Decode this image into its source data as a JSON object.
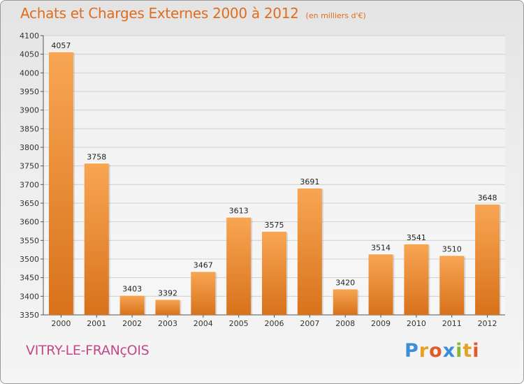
{
  "header": {
    "title": "Achats et Charges Externes 2000 à 2012",
    "unit": "(en milliers d'€)"
  },
  "location": "VITRY-LE-FRANçOIS",
  "brand": {
    "logo_text": "Proxiti"
  },
  "colors": {
    "title": "#e06d1f",
    "bar_light": "#f6a24f",
    "bar_dark": "#d9731c",
    "location": "#c04a88"
  },
  "chart_data": {
    "type": "bar",
    "categories": [
      "2000",
      "2001",
      "2002",
      "2003",
      "2004",
      "2005",
      "2006",
      "2007",
      "2008",
      "2009",
      "2010",
      "2011",
      "2012"
    ],
    "values": [
      4057,
      3758,
      3403,
      3392,
      3467,
      3613,
      3575,
      3691,
      3420,
      3514,
      3541,
      3510,
      3648
    ],
    "ylim": [
      3350,
      4100
    ],
    "yticks": [
      3350,
      3400,
      3450,
      3500,
      3550,
      3600,
      3650,
      3700,
      3750,
      3800,
      3850,
      3900,
      3950,
      4000,
      4050,
      4100
    ],
    "grid": true,
    "data_labels": true
  }
}
